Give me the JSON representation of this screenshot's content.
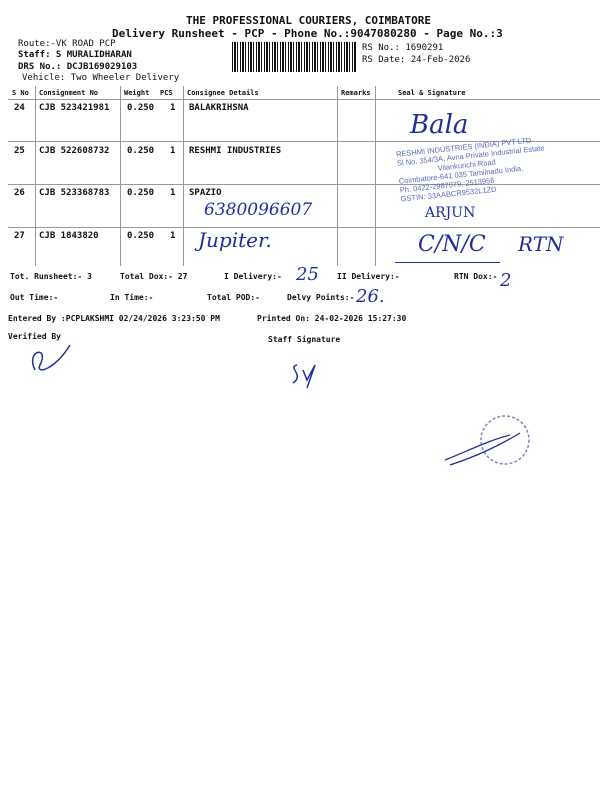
{
  "header": {
    "company": "THE PROFESSIONAL COURIERS, COIMBATORE",
    "subtitle": "Delivery Runsheet - PCP - Phone No.:9047080280 - Page No.:3",
    "route": "Route:-VK ROAD PCP",
    "staff": "Staff: S MURALIDHARAN",
    "drs": "DRS No.: DCJB169029103",
    "vehicle": "Vehicle: Two Wheeler Delivery",
    "rs_no": "RS No.: 1690291",
    "rs_date": "RS Date: 24-Feb-2026"
  },
  "table": {
    "columns": [
      "S No",
      "Consignment No",
      "Weight",
      "PCS",
      "Consignee Details",
      "Remarks",
      "Seal & Signature"
    ],
    "rows": [
      {
        "sno": "24",
        "cn": "CJB 523421981",
        "weight": "0.250",
        "pcs": "1",
        "consignee": "BALAKRIHSNA",
        "note": ""
      },
      {
        "sno": "25",
        "cn": "CJB 522608732",
        "weight": "0.250",
        "pcs": "1",
        "consignee": "RESHMI INDUSTRIES",
        "note": ""
      },
      {
        "sno": "26",
        "cn": "CJB 523368783",
        "weight": "0.250",
        "pcs": "1",
        "consignee": "SPAZIO",
        "note": "6380096607"
      },
      {
        "sno": "27",
        "cn": "CJB 1843820",
        "weight": "0.250",
        "pcs": "1",
        "consignee": "",
        "note": "Jupiter."
      }
    ]
  },
  "handwriting": {
    "sig24": "Bala",
    "stamp_name": "ARJUN",
    "row27_remark": "C/N/C",
    "row27_rtn": "RTN",
    "i_delivery": "25",
    "rtn_dox": "2",
    "delvy_points": "26."
  },
  "stamp": {
    "lines": [
      "RESHMI INDUSTRIES (INDIA) PVT LTD",
      "Sl No. 354/3A, Avna Private Industrial Estate",
      "Vilankurichi Road",
      "Coimbatore-641 035 Tamilnadu India.",
      "Ph: 0422-2987079, 2513956",
      "GSTIN: 33AABCR9532L1ZD"
    ]
  },
  "footer": {
    "tot_runsheet": "Tot. Runsheet:- 3",
    "total_dox": "Total Dox:-   27",
    "i_delivery": "I Delivery:-",
    "ii_delivery": "II Delivery:-",
    "rtn_dox": "RTN Dox:-",
    "out_time": "Out Time:-",
    "in_time": "In Time:-",
    "total_pod": "Total POD:-",
    "delvy_points": "Delvy Points:-",
    "entered_by": "Entered By :PCPLAKSHMI 02/24/2026 3:23:50 PM",
    "printed_on": "Printed On: 24-02-2026 15:27:30",
    "verified_by": "Verified By",
    "staff_signature": "Staff Signature"
  }
}
